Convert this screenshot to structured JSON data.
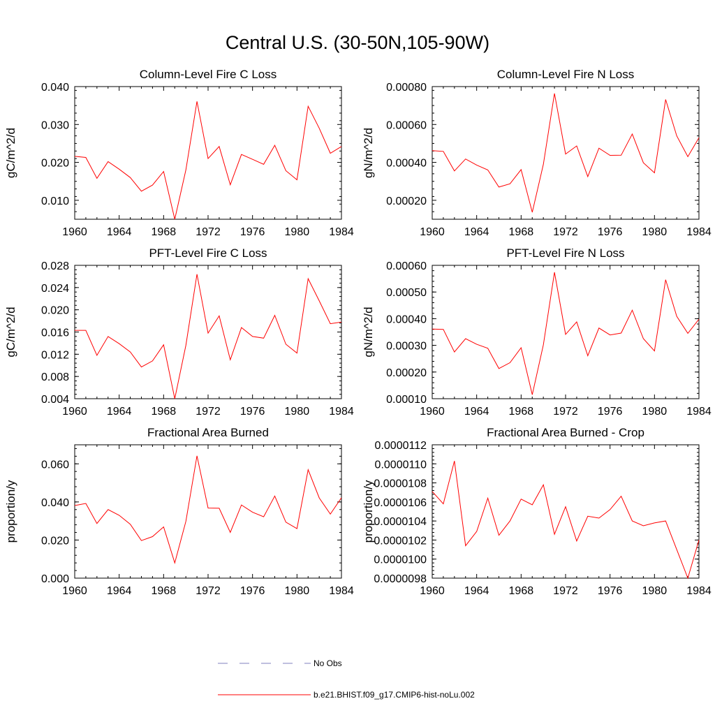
{
  "title": "Central U.S. (30-50N,105-90W)",
  "legend": {
    "entries": [
      {
        "label": "No Obs",
        "color": "#7f7fbf",
        "style": "dashed"
      },
      {
        "label": "b.e21.BHIST.f09_g17.CMIP6-hist-noLu.002",
        "color": "#ff0000",
        "style": "solid"
      }
    ]
  },
  "chart_data": [
    {
      "type": "line",
      "title": "Column-Level Fire C Loss",
      "ylabel": "gC/m^2/d",
      "xlim": [
        1960,
        1984
      ],
      "ylim": [
        0.005,
        0.04
      ],
      "yticks": [
        0.01,
        0.02,
        0.03,
        0.04
      ],
      "ytick_labels": [
        "0.010",
        "0.020",
        "0.030",
        "0.040"
      ],
      "xticks": [
        1960,
        1964,
        1968,
        1972,
        1976,
        1980,
        1984
      ],
      "xtick_labels": [
        "1960",
        "1964",
        "1968",
        "1972",
        "1976",
        "1980",
        "1984"
      ],
      "color": "#ff0000",
      "x": [
        1960,
        1961,
        1962,
        1963,
        1964,
        1965,
        1966,
        1967,
        1968,
        1969,
        1970,
        1971,
        1972,
        1973,
        1974,
        1975,
        1976,
        1977,
        1978,
        1979,
        1980,
        1981,
        1982,
        1983,
        1984
      ],
      "values": [
        0.0216,
        0.0213,
        0.0158,
        0.0202,
        0.0182,
        0.016,
        0.0124,
        0.014,
        0.0176,
        0.005,
        0.018,
        0.0361,
        0.021,
        0.0242,
        0.0141,
        0.0221,
        0.0208,
        0.0195,
        0.0245,
        0.0178,
        0.0154,
        0.0348,
        0.029,
        0.0224,
        0.0242
      ]
    },
    {
      "type": "line",
      "title": "Column-Level Fire N Loss",
      "ylabel": "gN/m^2/d",
      "xlim": [
        1960,
        1984
      ],
      "ylim": [
        0.0001,
        0.0008
      ],
      "yticks": [
        0.0002,
        0.0004,
        0.0006,
        0.0008
      ],
      "ytick_labels": [
        "0.00020",
        "0.00040",
        "0.00060",
        "0.00080"
      ],
      "xticks": [
        1960,
        1964,
        1968,
        1972,
        1976,
        1980,
        1984
      ],
      "xtick_labels": [
        "1960",
        "1964",
        "1968",
        "1972",
        "1976",
        "1980",
        "1984"
      ],
      "color": "#ff0000",
      "x": [
        1960,
        1961,
        1962,
        1963,
        1964,
        1965,
        1966,
        1967,
        1968,
        1969,
        1970,
        1971,
        1972,
        1973,
        1974,
        1975,
        1976,
        1977,
        1978,
        1979,
        1980,
        1981,
        1982,
        1983,
        1984
      ],
      "values": [
        0.000462,
        0.000458,
        0.000355,
        0.000418,
        0.000386,
        0.00036,
        0.00027,
        0.000287,
        0.000362,
        0.000137,
        0.00039,
        0.000764,
        0.000444,
        0.000487,
        0.000325,
        0.000475,
        0.000437,
        0.000438,
        0.00055,
        0.000398,
        0.000345,
        0.000732,
        0.00054,
        0.00043,
        0.00053
      ]
    },
    {
      "type": "line",
      "title": "PFT-Level Fire C Loss",
      "ylabel": "gC/m^2/d",
      "xlim": [
        1960,
        1984
      ],
      "ylim": [
        0.004,
        0.028
      ],
      "yticks": [
        0.004,
        0.008,
        0.012,
        0.016,
        0.02,
        0.024,
        0.028
      ],
      "ytick_labels": [
        "0.004",
        "0.008",
        "0.012",
        "0.016",
        "0.020",
        "0.024",
        "0.028"
      ],
      "xticks": [
        1960,
        1964,
        1968,
        1972,
        1976,
        1980,
        1984
      ],
      "xtick_labels": [
        "1960",
        "1964",
        "1968",
        "1972",
        "1976",
        "1980",
        "1984"
      ],
      "color": "#ff0000",
      "x": [
        1960,
        1961,
        1962,
        1963,
        1964,
        1965,
        1966,
        1967,
        1968,
        1969,
        1970,
        1971,
        1972,
        1973,
        1974,
        1975,
        1976,
        1977,
        1978,
        1979,
        1980,
        1981,
        1982,
        1983,
        1984
      ],
      "values": [
        0.0163,
        0.0163,
        0.0118,
        0.0152,
        0.0139,
        0.0124,
        0.0097,
        0.0108,
        0.0137,
        0.004,
        0.0136,
        0.0264,
        0.0158,
        0.0189,
        0.011,
        0.0168,
        0.0152,
        0.0149,
        0.019,
        0.0138,
        0.0122,
        0.0256,
        0.0216,
        0.0175,
        0.0178
      ]
    },
    {
      "type": "line",
      "title": "PFT-Level Fire N Loss",
      "ylabel": "gN/m^2/d",
      "xlim": [
        1960,
        1984
      ],
      "ylim": [
        0.0001,
        0.0006
      ],
      "yticks": [
        0.0001,
        0.0002,
        0.0003,
        0.0004,
        0.0005,
        0.0006
      ],
      "ytick_labels": [
        "0.00010",
        "0.00020",
        "0.00030",
        "0.00040",
        "0.00050",
        "0.00060"
      ],
      "xticks": [
        1960,
        1964,
        1968,
        1972,
        1976,
        1980,
        1984
      ],
      "xtick_labels": [
        "1960",
        "1964",
        "1968",
        "1972",
        "1976",
        "1980",
        "1984"
      ],
      "color": "#ff0000",
      "x": [
        1960,
        1961,
        1962,
        1963,
        1964,
        1965,
        1966,
        1967,
        1968,
        1969,
        1970,
        1971,
        1972,
        1973,
        1974,
        1975,
        1976,
        1977,
        1978,
        1979,
        1980,
        1981,
        1982,
        1983,
        1984
      ],
      "values": [
        0.000361,
        0.00036,
        0.000275,
        0.000325,
        0.000304,
        0.000289,
        0.000213,
        0.000235,
        0.000291,
        0.000115,
        0.000302,
        0.000574,
        0.000341,
        0.000388,
        0.000261,
        0.000365,
        0.000339,
        0.000346,
        0.000432,
        0.000325,
        0.000279,
        0.000546,
        0.000409,
        0.000345,
        0.000398
      ]
    },
    {
      "type": "line",
      "title": "Fractional Area Burned",
      "ylabel": "proportion/y",
      "xlim": [
        1960,
        1984
      ],
      "ylim": [
        0.0,
        0.07
      ],
      "yticks": [
        0.0,
        0.02,
        0.04,
        0.06
      ],
      "ytick_labels": [
        "0.000",
        "0.020",
        "0.040",
        "0.060"
      ],
      "xticks": [
        1960,
        1964,
        1968,
        1972,
        1976,
        1980,
        1984
      ],
      "xtick_labels": [
        "1960",
        "1964",
        "1968",
        "1972",
        "1976",
        "1980",
        "1984"
      ],
      "color": "#ff0000",
      "x": [
        1960,
        1961,
        1962,
        1963,
        1964,
        1965,
        1966,
        1967,
        1968,
        1969,
        1970,
        1971,
        1972,
        1973,
        1974,
        1975,
        1976,
        1977,
        1978,
        1979,
        1980,
        1981,
        1982,
        1983,
        1984
      ],
      "values": [
        0.0381,
        0.0392,
        0.0287,
        0.036,
        0.033,
        0.0283,
        0.0197,
        0.0218,
        0.0269,
        0.008,
        0.0298,
        0.0642,
        0.0368,
        0.0367,
        0.024,
        0.0384,
        0.0346,
        0.0322,
        0.0431,
        0.0294,
        0.026,
        0.0569,
        0.0421,
        0.0336,
        0.0422
      ]
    },
    {
      "type": "line",
      "title": "Fractional Area Burned - Crop",
      "ylabel": "proportion/y",
      "xlim": [
        1960,
        1984
      ],
      "ylim": [
        9.8e-06,
        1.12e-05
      ],
      "yticks": [
        9.8e-06,
        1e-05,
        1.02e-05,
        1.04e-05,
        1.06e-05,
        1.08e-05,
        1.1e-05,
        1.12e-05
      ],
      "ytick_labels": [
        "0.0000098",
        "0.0000100",
        "0.0000102",
        "0.0000104",
        "0.0000106",
        "0.0000108",
        "0.0000110",
        "0.0000112"
      ],
      "xticks": [
        1960,
        1964,
        1968,
        1972,
        1976,
        1980,
        1984
      ],
      "xtick_labels": [
        "1960",
        "1964",
        "1968",
        "1972",
        "1976",
        "1980",
        "1984"
      ],
      "color": "#ff0000",
      "x": [
        1960,
        1961,
        1962,
        1963,
        1964,
        1965,
        1966,
        1967,
        1968,
        1969,
        1970,
        1971,
        1972,
        1973,
        1974,
        1975,
        1976,
        1977,
        1978,
        1979,
        1980,
        1981,
        1982,
        1983,
        1984
      ],
      "values": [
        1.071e-05,
        1.058e-05,
        1.103e-05,
        1.014e-05,
        1.029e-05,
        1.064e-05,
        1.025e-05,
        1.04e-05,
        1.063e-05,
        1.057e-05,
        1.078e-05,
        1.026e-05,
        1.055e-05,
        1.019e-05,
        1.045e-05,
        1.043e-05,
        1.052e-05,
        1.066e-05,
        1.04e-05,
        1.035e-05,
        1.038e-05,
        1.04e-05,
        1.01e-05,
        9.8e-06,
        1.02e-05
      ]
    }
  ]
}
